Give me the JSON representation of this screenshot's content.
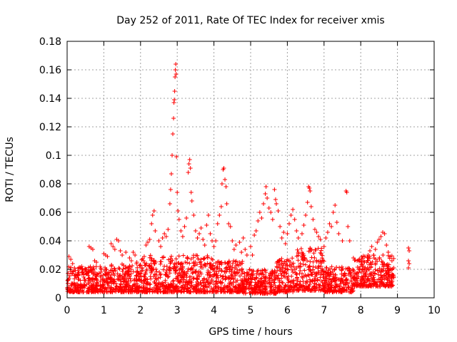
{
  "chart_data": {
    "type": "scatter",
    "title": "Day 252 of 2011, Rate Of TEC Index for receiver xmis",
    "xlabel": "GPS time / hours",
    "ylabel": "ROTI / TECUs",
    "xlim": [
      0,
      10
    ],
    "ylim": [
      0,
      0.18
    ],
    "x_ticks": [
      "0",
      "1",
      "2",
      "3",
      "4",
      "5",
      "6",
      "7",
      "8",
      "9",
      "10"
    ],
    "y_ticks": [
      "0",
      "0.02",
      "0.04",
      "0.06",
      "0.08",
      "0.1",
      "0.12",
      "0.14",
      "0.16",
      "0.18"
    ],
    "grid": true,
    "marker": "+",
    "color": "#ff0000",
    "series": [
      {
        "name": "ROTI",
        "points": [
          [
            0.05,
            0.029
          ],
          [
            0.1,
            0.027
          ],
          [
            0.15,
            0.024
          ],
          [
            0.2,
            0.021
          ],
          [
            0.3,
            0.019
          ],
          [
            0.4,
            0.022
          ],
          [
            0.5,
            0.02
          ],
          [
            0.55,
            0.017
          ],
          [
            0.6,
            0.036
          ],
          [
            0.65,
            0.035
          ],
          [
            0.7,
            0.034
          ],
          [
            0.75,
            0.026
          ],
          [
            0.8,
            0.025
          ],
          [
            0.9,
            0.022
          ],
          [
            1.0,
            0.031
          ],
          [
            1.05,
            0.03
          ],
          [
            1.1,
            0.029
          ],
          [
            1.2,
            0.038
          ],
          [
            1.25,
            0.036
          ],
          [
            1.3,
            0.034
          ],
          [
            1.35,
            0.041
          ],
          [
            1.4,
            0.04
          ],
          [
            1.45,
            0.033
          ],
          [
            1.5,
            0.03
          ],
          [
            1.6,
            0.032
          ],
          [
            1.7,
            0.028
          ],
          [
            1.75,
            0.026
          ],
          [
            1.8,
            0.032
          ],
          [
            1.85,
            0.03
          ],
          [
            1.9,
            0.025
          ],
          [
            2.0,
            0.023
          ],
          [
            2.1,
            0.029
          ],
          [
            2.15,
            0.037
          ],
          [
            2.2,
            0.039
          ],
          [
            2.25,
            0.041
          ],
          [
            2.3,
            0.052
          ],
          [
            2.33,
            0.058
          ],
          [
            2.37,
            0.061
          ],
          [
            2.4,
            0.047
          ],
          [
            2.5,
            0.04
          ],
          [
            2.55,
            0.036
          ],
          [
            2.6,
            0.042
          ],
          [
            2.65,
            0.045
          ],
          [
            2.7,
            0.043
          ],
          [
            2.75,
            0.048
          ],
          [
            2.8,
            0.066
          ],
          [
            2.82,
            0.076
          ],
          [
            2.84,
            0.087
          ],
          [
            2.86,
            0.1
          ],
          [
            2.88,
            0.115
          ],
          [
            2.9,
            0.126
          ],
          [
            2.91,
            0.137
          ],
          [
            2.92,
            0.139
          ],
          [
            2.93,
            0.145
          ],
          [
            2.94,
            0.155
          ],
          [
            2.95,
            0.16
          ],
          [
            2.96,
            0.164
          ],
          [
            2.97,
            0.157
          ],
          [
            2.98,
            0.099
          ],
          [
            3.0,
            0.074
          ],
          [
            3.02,
            0.061
          ],
          [
            3.05,
            0.055
          ],
          [
            3.1,
            0.047
          ],
          [
            3.15,
            0.043
          ],
          [
            3.2,
            0.05
          ],
          [
            3.25,
            0.056
          ],
          [
            3.3,
            0.088
          ],
          [
            3.32,
            0.094
          ],
          [
            3.34,
            0.097
          ],
          [
            3.36,
            0.091
          ],
          [
            3.38,
            0.074
          ],
          [
            3.4,
            0.068
          ],
          [
            3.45,
            0.058
          ],
          [
            3.5,
            0.047
          ],
          [
            3.55,
            0.042
          ],
          [
            3.6,
            0.045
          ],
          [
            3.65,
            0.049
          ],
          [
            3.7,
            0.041
          ],
          [
            3.75,
            0.037
          ],
          [
            3.8,
            0.051
          ],
          [
            3.85,
            0.058
          ],
          [
            3.9,
            0.045
          ],
          [
            3.95,
            0.04
          ],
          [
            4.0,
            0.036
          ],
          [
            4.05,
            0.04
          ],
          [
            4.1,
            0.052
          ],
          [
            4.15,
            0.058
          ],
          [
            4.2,
            0.064
          ],
          [
            4.22,
            0.08
          ],
          [
            4.25,
            0.09
          ],
          [
            4.27,
            0.091
          ],
          [
            4.3,
            0.083
          ],
          [
            4.33,
            0.078
          ],
          [
            4.35,
            0.066
          ],
          [
            4.4,
            0.052
          ],
          [
            4.45,
            0.05
          ],
          [
            4.5,
            0.04
          ],
          [
            4.55,
            0.034
          ],
          [
            4.6,
            0.037
          ],
          [
            4.7,
            0.039
          ],
          [
            4.75,
            0.032
          ],
          [
            4.8,
            0.042
          ],
          [
            4.85,
            0.034
          ],
          [
            4.9,
            0.03
          ],
          [
            5.0,
            0.036
          ],
          [
            5.05,
            0.03
          ],
          [
            5.1,
            0.044
          ],
          [
            5.15,
            0.047
          ],
          [
            5.2,
            0.054
          ],
          [
            5.25,
            0.06
          ],
          [
            5.3,
            0.056
          ],
          [
            5.35,
            0.066
          ],
          [
            5.4,
            0.073
          ],
          [
            5.42,
            0.078
          ],
          [
            5.45,
            0.07
          ],
          [
            5.5,
            0.063
          ],
          [
            5.55,
            0.06
          ],
          [
            5.6,
            0.055
          ],
          [
            5.65,
            0.076
          ],
          [
            5.68,
            0.069
          ],
          [
            5.7,
            0.066
          ],
          [
            5.75,
            0.061
          ],
          [
            5.8,
            0.05
          ],
          [
            5.85,
            0.042
          ],
          [
            5.9,
            0.046
          ],
          [
            5.95,
            0.038
          ],
          [
            6.0,
            0.045
          ],
          [
            6.05,
            0.052
          ],
          [
            6.1,
            0.058
          ],
          [
            6.15,
            0.062
          ],
          [
            6.2,
            0.055
          ],
          [
            6.25,
            0.047
          ],
          [
            6.3,
            0.042
          ],
          [
            6.4,
            0.045
          ],
          [
            6.45,
            0.051
          ],
          [
            6.5,
            0.058
          ],
          [
            6.55,
            0.067
          ],
          [
            6.58,
            0.078
          ],
          [
            6.6,
            0.077
          ],
          [
            6.62,
            0.075
          ],
          [
            6.65,
            0.064
          ],
          [
            6.7,
            0.055
          ],
          [
            6.75,
            0.048
          ],
          [
            6.8,
            0.046
          ],
          [
            6.85,
            0.043
          ],
          [
            6.9,
            0.041
          ],
          [
            7.0,
            0.036
          ],
          [
            7.05,
            0.042
          ],
          [
            7.1,
            0.046
          ],
          [
            7.15,
            0.052
          ],
          [
            7.2,
            0.05
          ],
          [
            7.25,
            0.06
          ],
          [
            7.3,
            0.065
          ],
          [
            7.35,
            0.053
          ],
          [
            7.4,
            0.045
          ],
          [
            7.5,
            0.04
          ],
          [
            7.6,
            0.075
          ],
          [
            7.62,
            0.074
          ],
          [
            7.65,
            0.05
          ],
          [
            7.7,
            0.04
          ],
          [
            7.8,
            0.028
          ],
          [
            7.9,
            0.026
          ],
          [
            8.0,
            0.022
          ],
          [
            8.1,
            0.025
          ],
          [
            8.2,
            0.03
          ],
          [
            8.25,
            0.033
          ],
          [
            8.3,
            0.036
          ],
          [
            8.35,
            0.03
          ],
          [
            8.4,
            0.034
          ],
          [
            8.45,
            0.039
          ],
          [
            8.5,
            0.041
          ],
          [
            8.55,
            0.043
          ],
          [
            8.6,
            0.046
          ],
          [
            8.65,
            0.045
          ],
          [
            8.7,
            0.037
          ],
          [
            8.75,
            0.032
          ],
          [
            8.8,
            0.029
          ],
          [
            8.85,
            0.026
          ],
          [
            8.9,
            0.021
          ],
          [
            9.3,
            0.035
          ],
          [
            9.32,
            0.033
          ],
          [
            9.3,
            0.026
          ],
          [
            9.32,
            0.024
          ],
          [
            9.3,
            0.021
          ],
          [
            0.3,
            0.013
          ],
          [
            0.8,
            0.015
          ],
          [
            1.2,
            0.016
          ],
          [
            1.6,
            0.014
          ],
          [
            2.0,
            0.017
          ],
          [
            2.4,
            0.016
          ],
          [
            2.8,
            0.019
          ],
          [
            3.2,
            0.018
          ],
          [
            3.6,
            0.015
          ],
          [
            4.0,
            0.016
          ],
          [
            4.4,
            0.014
          ],
          [
            4.8,
            0.01
          ],
          [
            5.2,
            0.011
          ],
          [
            5.6,
            0.012
          ],
          [
            6.0,
            0.014
          ],
          [
            6.4,
            0.017
          ],
          [
            6.8,
            0.016
          ],
          [
            7.2,
            0.011
          ],
          [
            7.6,
            0.01
          ],
          [
            8.0,
            0.012
          ]
        ]
      }
    ],
    "dense_band": {
      "description_ref": "background band of many points",
      "ranges": [
        [
          0.0,
          1.0,
          0.004,
          0.022
        ],
        [
          1.0,
          2.0,
          0.004,
          0.024
        ],
        [
          2.0,
          3.0,
          0.004,
          0.03
        ],
        [
          3.0,
          4.0,
          0.004,
          0.03
        ],
        [
          4.0,
          4.8,
          0.004,
          0.026
        ],
        [
          4.8,
          5.7,
          0.003,
          0.02
        ],
        [
          5.7,
          6.2,
          0.004,
          0.028
        ],
        [
          6.2,
          7.0,
          0.005,
          0.035
        ],
        [
          7.0,
          7.8,
          0.004,
          0.022
        ],
        [
          7.8,
          8.9,
          0.008,
          0.03
        ]
      ]
    }
  }
}
